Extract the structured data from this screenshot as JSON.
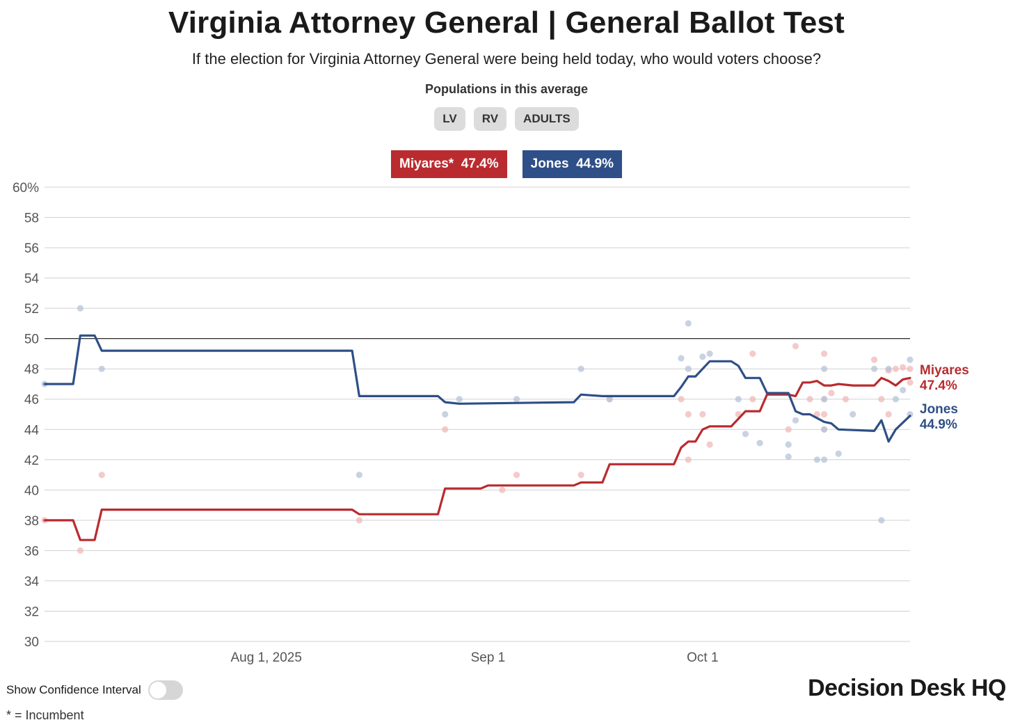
{
  "header": {
    "title": "Virginia Attorney General | General Ballot Test",
    "subtitle": "If the election for Virginia Attorney General were being held today, who would voters choose?",
    "populations_label": "Populations in this average",
    "populations": [
      "LV",
      "RV",
      "ADULTS"
    ]
  },
  "legend": {
    "miyares": "Miyares*  47.4%",
    "jones": "Jones  44.9%"
  },
  "controls": {
    "toggle_label": "Show Confidence Interval",
    "toggle_on": false
  },
  "footnote": "* = Incumbent",
  "brand": {
    "text": "Decision Desk HQ",
    "icon": "checkmark-icon"
  },
  "colors": {
    "miyares": "#b92b2f",
    "jones": "#2e4f87",
    "miyares_dot": "#f2b8b8",
    "jones_dot": "#b7c3d8",
    "grid": "#d0d0d0",
    "fifty_line": "#111111"
  },
  "chart_data": {
    "type": "line",
    "title": "Virginia Attorney General | General Ballot Test",
    "subtitle": "If the election for Virginia Attorney General were being held today, who would voters choose?",
    "xlabel": "",
    "ylabel": "",
    "x_range": [
      "2025-07-01",
      "2025-10-30"
    ],
    "x_ticks": [
      {
        "date": "2025-08-01",
        "label": "Aug 1, 2025"
      },
      {
        "date": "2025-09-01",
        "label": "Sep 1"
      },
      {
        "date": "2025-10-01",
        "label": "Oct 1"
      }
    ],
    "y_range": [
      30,
      60
    ],
    "y_ticks": [
      30,
      32,
      34,
      36,
      38,
      40,
      42,
      44,
      46,
      48,
      50,
      52,
      54,
      56,
      58,
      60
    ],
    "y_top_tick_label": "60%",
    "reference_line": 50,
    "grid": true,
    "series": [
      {
        "name": "Miyares",
        "end_label": "Miyares",
        "end_value_label": "47.4%",
        "color_key": "miyares",
        "points": [
          [
            "2025-07-01",
            38.0
          ],
          [
            "2025-07-05",
            38.0
          ],
          [
            "2025-07-06",
            36.7
          ],
          [
            "2025-07-08",
            36.7
          ],
          [
            "2025-07-09",
            38.7
          ],
          [
            "2025-08-13",
            38.7
          ],
          [
            "2025-08-14",
            38.4
          ],
          [
            "2025-08-25",
            38.4
          ],
          [
            "2025-08-26",
            40.1
          ],
          [
            "2025-08-31",
            40.1
          ],
          [
            "2025-09-01",
            40.3
          ],
          [
            "2025-09-13",
            40.3
          ],
          [
            "2025-09-14",
            40.5
          ],
          [
            "2025-09-17",
            40.5
          ],
          [
            "2025-09-18",
            41.7
          ],
          [
            "2025-09-27",
            41.7
          ],
          [
            "2025-09-28",
            42.8
          ],
          [
            "2025-09-29",
            43.2
          ],
          [
            "2025-09-30",
            43.2
          ],
          [
            "2025-10-01",
            44.0
          ],
          [
            "2025-10-02",
            44.2
          ],
          [
            "2025-10-05",
            44.2
          ],
          [
            "2025-10-07",
            45.2
          ],
          [
            "2025-10-09",
            45.2
          ],
          [
            "2025-10-10",
            46.3
          ],
          [
            "2025-10-13",
            46.3
          ],
          [
            "2025-10-14",
            46.2
          ],
          [
            "2025-10-15",
            47.1
          ],
          [
            "2025-10-16",
            47.1
          ],
          [
            "2025-10-17",
            47.2
          ],
          [
            "2025-10-18",
            46.9
          ],
          [
            "2025-10-19",
            46.9
          ],
          [
            "2025-10-20",
            47.0
          ],
          [
            "2025-10-22",
            46.9
          ],
          [
            "2025-10-25",
            46.9
          ],
          [
            "2025-10-26",
            47.4
          ],
          [
            "2025-10-27",
            47.2
          ],
          [
            "2025-10-28",
            46.9
          ],
          [
            "2025-10-29",
            47.3
          ],
          [
            "2025-10-30",
            47.4
          ]
        ],
        "polls": [
          [
            "2025-07-01",
            38
          ],
          [
            "2025-07-06",
            36
          ],
          [
            "2025-07-09",
            41
          ],
          [
            "2025-08-14",
            38
          ],
          [
            "2025-08-26",
            44
          ],
          [
            "2025-09-03",
            40
          ],
          [
            "2025-09-05",
            41
          ],
          [
            "2025-09-14",
            41
          ],
          [
            "2025-09-18",
            46
          ],
          [
            "2025-09-28",
            46
          ],
          [
            "2025-09-29",
            45
          ],
          [
            "2025-09-29",
            42
          ],
          [
            "2025-10-01",
            45
          ],
          [
            "2025-10-02",
            43
          ],
          [
            "2025-10-06",
            45
          ],
          [
            "2025-10-08",
            46
          ],
          [
            "2025-10-08",
            49
          ],
          [
            "2025-10-13",
            44
          ],
          [
            "2025-10-14",
            49.5
          ],
          [
            "2025-10-16",
            46
          ],
          [
            "2025-10-17",
            45
          ],
          [
            "2025-10-18",
            46
          ],
          [
            "2025-10-18",
            44
          ],
          [
            "2025-10-18",
            45
          ],
          [
            "2025-10-18",
            49
          ],
          [
            "2025-10-19",
            46.4
          ],
          [
            "2025-10-21",
            46
          ],
          [
            "2025-10-25",
            48.6
          ],
          [
            "2025-10-26",
            46
          ],
          [
            "2025-10-27",
            45
          ],
          [
            "2025-10-27",
            47.9
          ],
          [
            "2025-10-28",
            48
          ],
          [
            "2025-10-29",
            48.1
          ],
          [
            "2025-10-30",
            48
          ],
          [
            "2025-10-30",
            47.1
          ]
        ]
      },
      {
        "name": "Jones",
        "end_label": "Jones",
        "end_value_label": "44.9%",
        "color_key": "jones",
        "points": [
          [
            "2025-07-01",
            47.0
          ],
          [
            "2025-07-05",
            47.0
          ],
          [
            "2025-07-06",
            50.2
          ],
          [
            "2025-07-08",
            50.2
          ],
          [
            "2025-07-09",
            49.2
          ],
          [
            "2025-08-13",
            49.2
          ],
          [
            "2025-08-14",
            46.2
          ],
          [
            "2025-08-25",
            46.2
          ],
          [
            "2025-08-26",
            45.8
          ],
          [
            "2025-08-28",
            45.7
          ],
          [
            "2025-09-13",
            45.8
          ],
          [
            "2025-09-14",
            46.3
          ],
          [
            "2025-09-17",
            46.2
          ],
          [
            "2025-09-27",
            46.2
          ],
          [
            "2025-09-28",
            46.8
          ],
          [
            "2025-09-29",
            47.5
          ],
          [
            "2025-09-30",
            47.5
          ],
          [
            "2025-10-02",
            48.5
          ],
          [
            "2025-10-05",
            48.5
          ],
          [
            "2025-10-06",
            48.2
          ],
          [
            "2025-10-07",
            47.4
          ],
          [
            "2025-10-09",
            47.4
          ],
          [
            "2025-10-10",
            46.4
          ],
          [
            "2025-10-13",
            46.4
          ],
          [
            "2025-10-14",
            45.2
          ],
          [
            "2025-10-15",
            45.0
          ],
          [
            "2025-10-16",
            45.0
          ],
          [
            "2025-10-18",
            44.5
          ],
          [
            "2025-10-19",
            44.4
          ],
          [
            "2025-10-20",
            44.0
          ],
          [
            "2025-10-25",
            43.9
          ],
          [
            "2025-10-26",
            44.6
          ],
          [
            "2025-10-27",
            43.2
          ],
          [
            "2025-10-28",
            44.0
          ],
          [
            "2025-10-30",
            44.9
          ]
        ],
        "polls": [
          [
            "2025-07-01",
            47
          ],
          [
            "2025-07-06",
            52
          ],
          [
            "2025-07-09",
            48
          ],
          [
            "2025-08-14",
            41
          ],
          [
            "2025-08-26",
            45
          ],
          [
            "2025-08-28",
            46
          ],
          [
            "2025-09-05",
            46
          ],
          [
            "2025-09-14",
            48
          ],
          [
            "2025-09-18",
            46
          ],
          [
            "2025-09-28",
            48.7
          ],
          [
            "2025-09-29",
            51
          ],
          [
            "2025-09-29",
            48
          ],
          [
            "2025-10-01",
            48.8
          ],
          [
            "2025-10-02",
            49
          ],
          [
            "2025-10-06",
            46
          ],
          [
            "2025-10-07",
            43.7
          ],
          [
            "2025-10-09",
            43.1
          ],
          [
            "2025-10-13",
            42.2
          ],
          [
            "2025-10-13",
            43
          ],
          [
            "2025-10-14",
            44.6
          ],
          [
            "2025-10-17",
            42
          ],
          [
            "2025-10-18",
            44
          ],
          [
            "2025-10-18",
            46
          ],
          [
            "2025-10-18",
            48
          ],
          [
            "2025-10-18",
            42
          ],
          [
            "2025-10-20",
            42.4
          ],
          [
            "2025-10-22",
            45
          ],
          [
            "2025-10-25",
            48
          ],
          [
            "2025-10-26",
            38
          ],
          [
            "2025-10-27",
            48
          ],
          [
            "2025-10-28",
            46
          ],
          [
            "2025-10-29",
            46.6
          ],
          [
            "2025-10-30",
            48.6
          ],
          [
            "2025-10-30",
            45
          ]
        ]
      }
    ]
  }
}
